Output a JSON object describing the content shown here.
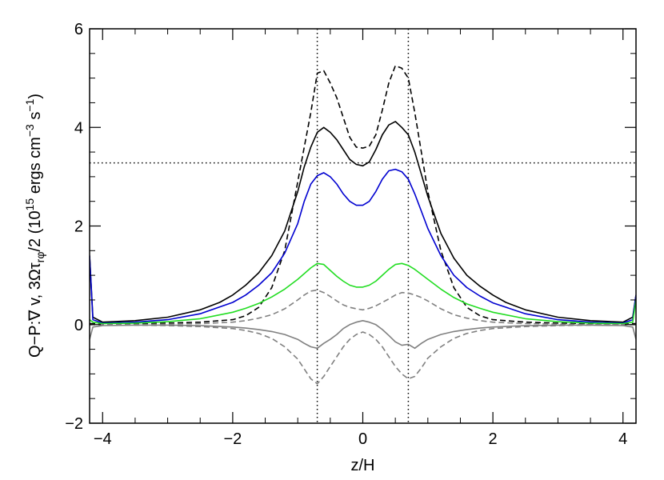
{
  "chart_data": {
    "type": "line",
    "title": "",
    "xlabel": "z/H",
    "ylabel": {
      "main": "Q−P:∇ v, 3Ωτ",
      "sub": "rφ",
      "tail": "/2 (10",
      "sup1": "15",
      "units_a": " ergs cm",
      "sup2": "−3",
      "units_b": " s",
      "sup3": "−1",
      "close": ")"
    },
    "xlim": [
      -4.2,
      4.2
    ],
    "ylim": [
      -2.0,
      6.0
    ],
    "xticks": [
      -4,
      -2,
      0,
      2,
      4
    ],
    "xtick_labels": [
      "−4",
      "−2",
      "0",
      "2",
      "4"
    ],
    "yticks": [
      -2,
      0,
      2,
      4,
      6
    ],
    "ytick_labels": [
      "−2",
      "0",
      "2",
      "4",
      "6"
    ],
    "grid": false,
    "legend": "none",
    "reference_lines": {
      "vertical_x": [
        -0.7,
        0.7
      ],
      "horizontal_y": 3.28
    },
    "series": [
      {
        "color": "#000000",
        "dash": "dashed",
        "x": [
          -4.2,
          -3.5,
          -3.0,
          -2.5,
          -2.0,
          -1.8,
          -1.6,
          -1.4,
          -1.2,
          -1.0,
          -0.9,
          -0.8,
          -0.7,
          -0.6,
          -0.5,
          -0.4,
          -0.3,
          -0.2,
          -0.1,
          0.0,
          0.1,
          0.2,
          0.3,
          0.4,
          0.5,
          0.6,
          0.7,
          0.8,
          0.9,
          1.0,
          1.2,
          1.4,
          1.6,
          1.8,
          2.0,
          2.5,
          3.0,
          3.5,
          4.2
        ],
        "y": [
          0.02,
          0.02,
          0.03,
          0.05,
          0.1,
          0.18,
          0.35,
          0.75,
          1.5,
          2.9,
          3.6,
          4.3,
          5.1,
          5.15,
          4.9,
          4.6,
          4.2,
          3.8,
          3.6,
          3.58,
          3.62,
          3.85,
          4.35,
          4.9,
          5.25,
          5.2,
          5.0,
          4.3,
          3.5,
          2.7,
          1.5,
          0.75,
          0.35,
          0.18,
          0.1,
          0.05,
          0.03,
          0.02,
          0.02
        ]
      },
      {
        "color": "#000000",
        "dash": "solid",
        "x": [
          -4.2,
          -4.15,
          -4.0,
          -3.5,
          -3.0,
          -2.5,
          -2.2,
          -2.0,
          -1.8,
          -1.6,
          -1.4,
          -1.2,
          -1.0,
          -0.9,
          -0.8,
          -0.7,
          -0.6,
          -0.5,
          -0.4,
          -0.3,
          -0.2,
          -0.1,
          0.0,
          0.1,
          0.2,
          0.3,
          0.4,
          0.5,
          0.6,
          0.7,
          0.8,
          0.9,
          1.0,
          1.2,
          1.4,
          1.6,
          1.8,
          2.0,
          2.2,
          2.5,
          3.0,
          3.5,
          4.0,
          4.15,
          4.2
        ],
        "y": [
          1.4,
          0.15,
          0.05,
          0.08,
          0.15,
          0.3,
          0.45,
          0.6,
          0.8,
          1.05,
          1.4,
          1.9,
          2.7,
          3.2,
          3.6,
          3.9,
          4.0,
          3.9,
          3.75,
          3.55,
          3.35,
          3.25,
          3.22,
          3.3,
          3.55,
          3.85,
          4.05,
          4.12,
          4.0,
          3.85,
          3.5,
          3.05,
          2.6,
          1.85,
          1.35,
          1.0,
          0.78,
          0.6,
          0.45,
          0.3,
          0.15,
          0.08,
          0.05,
          0.15,
          0.6
        ]
      },
      {
        "color": "#0000d0",
        "dash": "solid",
        "x": [
          -4.2,
          -4.15,
          -4.0,
          -3.5,
          -3.0,
          -2.5,
          -2.0,
          -1.8,
          -1.6,
          -1.4,
          -1.2,
          -1.0,
          -0.9,
          -0.8,
          -0.7,
          -0.6,
          -0.5,
          -0.4,
          -0.3,
          -0.2,
          -0.1,
          0.0,
          0.1,
          0.2,
          0.3,
          0.4,
          0.5,
          0.6,
          0.7,
          0.8,
          0.9,
          1.0,
          1.2,
          1.4,
          1.6,
          1.8,
          2.0,
          2.5,
          3.0,
          3.5,
          4.0,
          4.15,
          4.2
        ],
        "y": [
          1.4,
          0.1,
          0.03,
          0.05,
          0.1,
          0.22,
          0.45,
          0.6,
          0.8,
          1.05,
          1.45,
          2.05,
          2.5,
          2.85,
          3.02,
          3.08,
          3.0,
          2.85,
          2.65,
          2.5,
          2.42,
          2.42,
          2.5,
          2.7,
          2.95,
          3.12,
          3.15,
          3.1,
          2.95,
          2.65,
          2.3,
          1.95,
          1.4,
          1.0,
          0.75,
          0.58,
          0.44,
          0.22,
          0.1,
          0.05,
          0.03,
          0.1,
          0.6
        ]
      },
      {
        "color": "#22dd22",
        "dash": "solid",
        "x": [
          -4.2,
          -4.15,
          -4.0,
          -3.5,
          -3.0,
          -2.5,
          -2.0,
          -1.8,
          -1.6,
          -1.4,
          -1.2,
          -1.0,
          -0.8,
          -0.7,
          -0.6,
          -0.5,
          -0.4,
          -0.3,
          -0.2,
          -0.1,
          0.0,
          0.1,
          0.2,
          0.3,
          0.4,
          0.5,
          0.6,
          0.7,
          0.8,
          1.0,
          1.2,
          1.4,
          1.6,
          1.8,
          2.0,
          2.5,
          3.0,
          3.5,
          4.0,
          4.15,
          4.2
        ],
        "y": [
          0.1,
          0.05,
          0.02,
          0.03,
          0.06,
          0.12,
          0.25,
          0.33,
          0.43,
          0.56,
          0.72,
          0.92,
          1.15,
          1.24,
          1.22,
          1.1,
          0.98,
          0.88,
          0.8,
          0.76,
          0.76,
          0.8,
          0.88,
          1.0,
          1.12,
          1.22,
          1.24,
          1.2,
          1.12,
          0.92,
          0.72,
          0.55,
          0.42,
          0.33,
          0.25,
          0.12,
          0.06,
          0.03,
          0.02,
          0.05,
          0.5
        ]
      },
      {
        "color": "#808080",
        "dash": "dashed",
        "x": [
          -4.2,
          -3.5,
          -3.0,
          -2.5,
          -2.0,
          -1.8,
          -1.6,
          -1.4,
          -1.2,
          -1.0,
          -0.9,
          -0.8,
          -0.7,
          -0.6,
          -0.5,
          -0.4,
          -0.3,
          -0.2,
          -0.1,
          0.0,
          0.1,
          0.2,
          0.3,
          0.4,
          0.5,
          0.6,
          0.7,
          0.8,
          0.9,
          1.0,
          1.2,
          1.4,
          1.6,
          1.8,
          2.0,
          2.5,
          3.0,
          3.5,
          4.2
        ],
        "y": [
          0.0,
          0.0,
          0.01,
          0.02,
          0.05,
          0.08,
          0.13,
          0.2,
          0.32,
          0.5,
          0.6,
          0.68,
          0.7,
          0.65,
          0.57,
          0.48,
          0.4,
          0.35,
          0.32,
          0.3,
          0.33,
          0.38,
          0.45,
          0.52,
          0.6,
          0.65,
          0.64,
          0.6,
          0.55,
          0.48,
          0.32,
          0.2,
          0.13,
          0.08,
          0.05,
          0.02,
          0.01,
          0.0,
          0.0
        ]
      },
      {
        "color": "#808080",
        "dash": "solid",
        "x": [
          -4.2,
          -4.15,
          -4.0,
          -3.5,
          -3.0,
          -2.5,
          -2.0,
          -1.8,
          -1.6,
          -1.4,
          -1.2,
          -1.0,
          -0.9,
          -0.8,
          -0.7,
          -0.6,
          -0.5,
          -0.4,
          -0.3,
          -0.2,
          -0.1,
          0.0,
          0.1,
          0.2,
          0.3,
          0.4,
          0.5,
          0.6,
          0.7,
          0.8,
          0.9,
          1.0,
          1.2,
          1.4,
          1.6,
          1.8,
          2.0,
          2.5,
          3.0,
          3.5,
          4.0,
          4.15,
          4.2
        ],
        "y": [
          -0.3,
          -0.05,
          -0.02,
          -0.01,
          -0.01,
          -0.02,
          -0.05,
          -0.07,
          -0.1,
          -0.14,
          -0.2,
          -0.3,
          -0.38,
          -0.45,
          -0.48,
          -0.38,
          -0.3,
          -0.2,
          -0.08,
          0.0,
          0.05,
          0.08,
          0.05,
          0.0,
          -0.1,
          -0.22,
          -0.35,
          -0.42,
          -0.4,
          -0.48,
          -0.38,
          -0.3,
          -0.2,
          -0.14,
          -0.1,
          -0.07,
          -0.05,
          -0.02,
          -0.01,
          -0.01,
          -0.02,
          -0.05,
          -0.3
        ]
      },
      {
        "color": "#808080",
        "dash": "dashed",
        "x": [
          -4.2,
          -3.5,
          -3.0,
          -2.5,
          -2.0,
          -1.8,
          -1.6,
          -1.4,
          -1.2,
          -1.0,
          -0.9,
          -0.8,
          -0.7,
          -0.6,
          -0.5,
          -0.4,
          -0.3,
          -0.2,
          -0.1,
          0.0,
          0.1,
          0.2,
          0.3,
          0.4,
          0.5,
          0.6,
          0.7,
          0.8,
          0.9,
          1.0,
          1.2,
          1.4,
          1.6,
          1.8,
          2.0,
          2.5,
          3.0,
          3.5,
          4.2
        ],
        "y": [
          0.0,
          -0.01,
          -0.02,
          -0.04,
          -0.08,
          -0.12,
          -0.18,
          -0.28,
          -0.45,
          -0.7,
          -0.9,
          -1.1,
          -1.2,
          -1.05,
          -0.85,
          -0.65,
          -0.45,
          -0.3,
          -0.2,
          -0.15,
          -0.2,
          -0.3,
          -0.45,
          -0.65,
          -0.85,
          -1.0,
          -1.1,
          -1.05,
          -0.88,
          -0.68,
          -0.45,
          -0.28,
          -0.18,
          -0.12,
          -0.08,
          -0.04,
          -0.02,
          -0.01,
          0.0
        ]
      }
    ]
  }
}
